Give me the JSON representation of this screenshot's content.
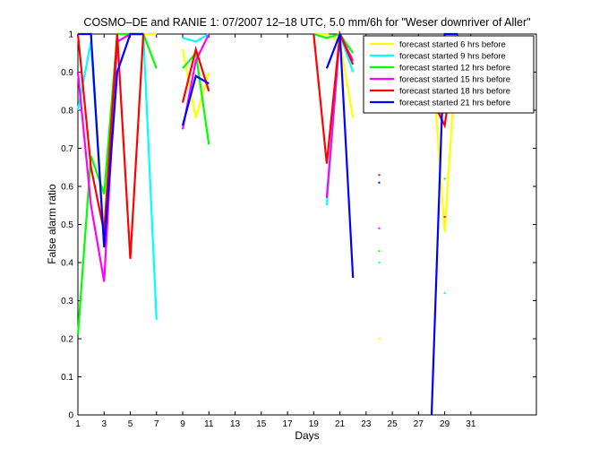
{
  "chart_data": {
    "type": "line",
    "title": "COSMO–DE and RANIE 1: 07/2007 12–18 UTC, 5.0 mm/6h for \"Weser downriver of Aller\"",
    "xlabel": "Days",
    "ylabel": "False alarm ratio",
    "xlim": [
      1,
      36
    ],
    "ylim": [
      0,
      1
    ],
    "xticks": [
      1,
      3,
      5,
      7,
      9,
      11,
      13,
      15,
      17,
      19,
      21,
      23,
      25,
      27,
      29,
      31
    ],
    "yticks": [
      0,
      0.1,
      0.2,
      0.3,
      0.4,
      0.5,
      0.6,
      0.7,
      0.8,
      0.9,
      1
    ],
    "ytick_labels": [
      "0",
      "0.1",
      "0.2",
      "0.3",
      "0.4",
      "0.5",
      "0.6",
      "0.7",
      "0.8",
      "0.9",
      "1"
    ],
    "grid": false,
    "legend_position": "top-right",
    "series": [
      {
        "name": "forecast started 6 hrs before",
        "color": "#ffff00",
        "segments": [
          [
            [
              1,
              1.0
            ],
            [
              2,
              1.0
            ],
            [
              3,
              0.48
            ],
            [
              4,
              1.0
            ],
            [
              5,
              1.0
            ],
            [
              6,
              1.0
            ],
            [
              7,
              1.0
            ]
          ],
          [
            [
              9,
              0.96
            ],
            [
              10,
              0.78
            ],
            [
              11,
              0.9
            ]
          ],
          [
            [
              19,
              1.0
            ],
            [
              20,
              1.0
            ],
            [
              21,
              0.98
            ],
            [
              22,
              0.78
            ]
          ],
          [
            [
              28,
              0.95
            ],
            [
              29,
              0.48
            ],
            [
              30,
              1.0
            ]
          ]
        ],
        "points": [
          [
            24,
            0.2
          ]
        ]
      },
      {
        "name": "forecast started 9 hrs before",
        "color": "#00ffff",
        "segments": [
          [
            [
              1,
              0.8
            ],
            [
              2,
              0.98
            ],
            [
              3,
              0.45
            ],
            [
              4,
              1.0
            ],
            [
              5,
              1.0
            ],
            [
              6,
              1.0
            ],
            [
              7,
              0.25
            ]
          ],
          [
            [
              9,
              0.99
            ],
            [
              10,
              0.98
            ],
            [
              11,
              1.0
            ]
          ],
          [
            [
              20,
              0.55
            ],
            [
              21,
              1.0
            ],
            [
              22,
              0.9
            ]
          ]
        ],
        "points": [
          [
            24,
            0.4
          ],
          [
            29,
            0.32
          ]
        ]
      },
      {
        "name": "forecast started 12 hrs before",
        "color": "#00ff00",
        "segments": [
          [
            [
              1,
              0.21
            ],
            [
              2,
              0.68
            ],
            [
              3,
              0.58
            ],
            [
              4,
              1.0
            ],
            [
              5,
              1.0
            ],
            [
              6,
              1.0
            ],
            [
              7,
              0.91
            ]
          ],
          [
            [
              9,
              0.91
            ],
            [
              10,
              0.95
            ],
            [
              11,
              0.71
            ]
          ],
          [
            [
              19,
              1.0
            ],
            [
              20,
              0.99
            ],
            [
              21,
              1.0
            ],
            [
              22,
              0.95
            ]
          ]
        ],
        "points": [
          [
            24,
            0.43
          ],
          [
            29,
            0.62
          ]
        ]
      },
      {
        "name": "forecast started 15 hrs before",
        "color": "#ff00ff",
        "segments": [
          [
            [
              1,
              0.9
            ],
            [
              2,
              0.55
            ],
            [
              3,
              0.35
            ],
            [
              4,
              0.98
            ],
            [
              5,
              1.0
            ],
            [
              6,
              1.0
            ]
          ],
          [
            [
              9,
              0.75
            ],
            [
              10,
              0.93
            ],
            [
              11,
              1.0
            ]
          ],
          [
            [
              20,
              0.57
            ],
            [
              21,
              1.0
            ],
            [
              22,
              0.93
            ]
          ]
        ],
        "points": [
          [
            24,
            0.49
          ]
        ]
      },
      {
        "name": "forecast started 18 hrs before",
        "color": "#ff0000",
        "segments": [
          [
            [
              1,
              1.0
            ],
            [
              2,
              0.65
            ],
            [
              3,
              0.48
            ],
            [
              4,
              1.0
            ],
            [
              5,
              0.41
            ],
            [
              6,
              1.0
            ]
          ],
          [
            [
              9,
              0.82
            ],
            [
              10,
              0.96
            ],
            [
              11,
              0.85
            ]
          ],
          [
            [
              19,
              1.0
            ],
            [
              20,
              0.66
            ],
            [
              21,
              1.0
            ],
            [
              22,
              0.92
            ]
          ],
          [
            [
              28,
              0.83
            ],
            [
              29,
              0.76
            ],
            [
              30,
              1.0
            ]
          ]
        ],
        "points": [
          [
            24,
            0.63
          ],
          [
            29,
            0.52
          ]
        ]
      },
      {
        "name": "forecast started 21 hrs before",
        "color": "#0000ff",
        "segments": [
          [
            [
              1,
              1.0
            ],
            [
              2,
              1.0
            ],
            [
              3,
              0.44
            ],
            [
              4,
              0.9
            ],
            [
              5,
              1.0
            ],
            [
              6,
              1.0
            ]
          ],
          [
            [
              9,
              0.76
            ],
            [
              10,
              0.89
            ],
            [
              11,
              0.87
            ]
          ],
          [
            [
              20,
              0.91
            ],
            [
              21,
              1.0
            ],
            [
              22,
              0.36
            ]
          ],
          [
            [
              28,
              0.0
            ],
            [
              29,
              1.0
            ],
            [
              30,
              1.0
            ]
          ]
        ],
        "points": [
          [
            24,
            0.61
          ]
        ]
      }
    ]
  }
}
